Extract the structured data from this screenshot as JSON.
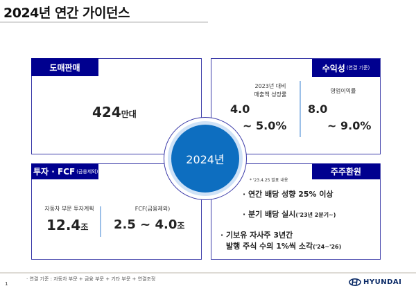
{
  "title": "2024년 연간 가이던스",
  "center": "2024년",
  "wholesale": {
    "tab": "도매판매",
    "value": "424",
    "unit": "만대"
  },
  "profitability": {
    "tab": "수익성",
    "tab_note": "(연결 기준)",
    "growth_label_1": "2023년 대비",
    "growth_label_2": "매출액 성장률",
    "growth_low": "4.0",
    "growth_high": "~ 5.0%",
    "margin_label": "영업이익률",
    "margin_low": "8.0",
    "margin_high": "~ 9.0%"
  },
  "investment": {
    "tab": "투자 · FCF",
    "tab_note": "(금융제외)",
    "capex_label": "자동차 부문 투자계획",
    "capex_value": "12.4",
    "capex_unit": "조",
    "fcf_label": "FCF(금융제외)",
    "fcf_value": "2.5 ~ 4.0",
    "fcf_unit": "조"
  },
  "shareholder": {
    "tab": "주주환원",
    "note": "* '23.4.25 발표 내용",
    "b1": "· 연간 배당 성향 25% 이상",
    "b2": "· 분기 배당 실시",
    "b2_note": "('23년 2분기~)",
    "b3a": "· 기보유 자사주 3년간",
    "b3b": "발행 주식 수의 1%씩 소각",
    "b3_note": "('24~'26)"
  },
  "footer": {
    "note": "· 연결 기준 : 자동차 부문 + 금융 부문 + 기타 부문 + 연결조정",
    "page": "1",
    "logo": "HYUNDAI"
  },
  "colors": {
    "navy": "#00008f",
    "circle": "#0d6ec0"
  }
}
